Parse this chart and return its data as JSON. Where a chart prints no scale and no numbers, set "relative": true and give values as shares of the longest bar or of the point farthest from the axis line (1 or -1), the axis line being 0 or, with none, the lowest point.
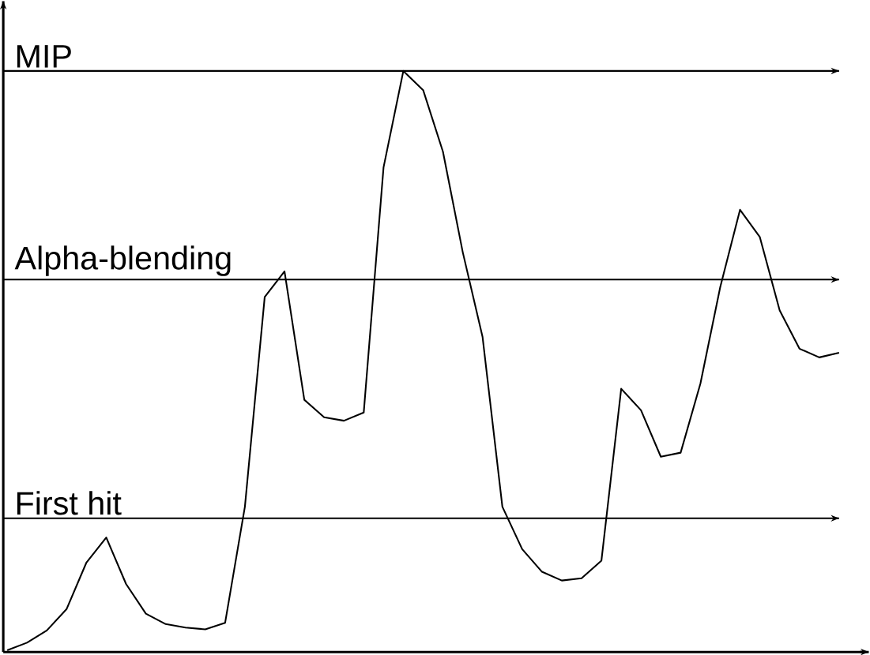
{
  "chart_data": {
    "type": "line",
    "relative": true,
    "color": "#000000",
    "marker": "none",
    "line_style": "solid",
    "tick_labels": false,
    "categories": [
      null,
      null,
      null,
      null,
      null,
      null,
      null,
      null,
      null,
      null,
      null,
      null,
      null,
      null,
      null,
      null,
      null,
      null,
      null,
      null,
      null,
      null,
      null,
      null,
      null,
      null,
      null,
      null,
      null,
      null,
      null,
      null,
      null,
      null,
      null,
      null,
      null,
      null,
      null,
      null,
      null,
      null,
      null
    ],
    "values": [
      0.003,
      0.016,
      0.037,
      0.074,
      0.154,
      0.197,
      0.117,
      0.066,
      0.048,
      0.042,
      0.039,
      0.05,
      0.25,
      0.611,
      0.655,
      0.434,
      0.404,
      0.398,
      0.412,
      0.834,
      1,
      0.967,
      0.861,
      0.688,
      0.542,
      0.25,
      0.177,
      0.138,
      0.123,
      0.127,
      0.157,
      0.453,
      0.416,
      0.336,
      0.343,
      0.462,
      0.628,
      0.761,
      0.714,
      0.588,
      0.522,
      0.507,
      0.515
    ],
    "ref_lines": [
      {
        "axis": "y",
        "value": 1,
        "label": "MIP"
      },
      {
        "axis": "y",
        "value": 0.641,
        "label": "Alpha-blending"
      },
      {
        "axis": "y",
        "value": 0.23,
        "label": "First hit"
      }
    ]
  }
}
